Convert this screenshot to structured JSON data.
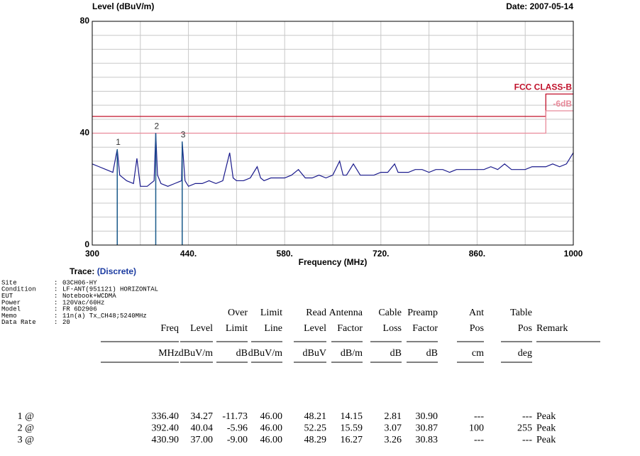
{
  "chart_data": {
    "type": "line",
    "title": "Level (dBuV/m)",
    "date": "Date: 2007-05-14",
    "xlabel": "Frequency (MHz)",
    "xlim": [
      300,
      1000
    ],
    "ylim": [
      0,
      80
    ],
    "xticks": [
      300,
      {
        "value": 440,
        "label": "440."
      },
      {
        "value": 580,
        "label": "580."
      },
      {
        "value": 720,
        "label": "720."
      },
      {
        "value": 860,
        "label": "860."
      },
      1000
    ],
    "xminorticks": [
      370,
      510,
      650,
      790,
      930
    ],
    "yticks": [
      0,
      40,
      80
    ],
    "yminorticks": [
      5,
      10,
      15,
      20,
      25,
      30,
      35,
      45,
      50,
      55,
      60,
      65,
      70,
      75
    ],
    "grid": true,
    "series": [
      {
        "name": "FCC CLASS-B",
        "color": "#c0102a",
        "x": [
          300,
          960,
          960,
          1000
        ],
        "values": [
          46,
          46,
          54,
          54
        ]
      },
      {
        "name": "-6dB",
        "color": "#e88a9a",
        "x": [
          300,
          960,
          960,
          1000
        ],
        "values": [
          40,
          40,
          48,
          48
        ]
      },
      {
        "name": "Trace",
        "color": "#1a1a8c",
        "x": [
          300,
          310,
          320,
          330,
          336.4,
          340,
          350,
          360,
          365,
          370,
          380,
          390,
          392.4,
          395,
          400,
          410,
          420,
          430,
          430.9,
          435,
          440,
          450,
          460,
          470,
          480,
          490,
          500,
          505,
          510,
          520,
          530,
          540,
          545,
          550,
          560,
          570,
          580,
          590,
          600,
          610,
          620,
          630,
          640,
          650,
          660,
          665,
          670,
          680,
          690,
          700,
          710,
          720,
          730,
          740,
          745,
          750,
          760,
          770,
          780,
          790,
          800,
          810,
          820,
          830,
          840,
          850,
          860,
          870,
          880,
          890,
          900,
          910,
          920,
          930,
          940,
          950,
          960,
          970,
          980,
          990,
          1000
        ],
        "values": [
          29,
          28,
          27,
          26,
          34.27,
          25,
          23,
          22,
          31,
          21,
          21,
          23,
          40.04,
          25,
          22,
          21,
          22,
          23,
          37.0,
          23,
          21,
          22,
          22,
          23,
          22,
          23,
          33,
          24,
          23,
          23,
          24,
          28,
          24,
          23,
          24,
          24,
          24,
          25,
          27,
          24,
          24,
          25,
          24,
          25,
          30,
          25,
          25,
          29,
          25,
          25,
          25,
          26,
          26,
          29,
          26,
          26,
          26,
          27,
          27,
          26,
          27,
          27,
          26,
          27,
          27,
          27,
          27,
          27,
          28,
          27,
          29,
          27,
          27,
          27,
          28,
          28,
          28,
          29,
          28,
          29,
          33
        ]
      }
    ],
    "markers": [
      {
        "label": "1",
        "x": 336.4,
        "y": 34.27
      },
      {
        "label": "2",
        "x": 392.4,
        "y": 40.04
      },
      {
        "label": "3",
        "x": 430.9,
        "y": 37.0
      }
    ]
  },
  "trace": {
    "label": "Trace:",
    "value": "(Discrete)"
  },
  "info": [
    {
      "label": "Site",
      "value": "03CH06-HY"
    },
    {
      "label": "Condition",
      "value": "LF-ANT(951121) HORIZONTAL"
    },
    {
      "label": "EUT",
      "value": "Notebook+WCDMA"
    },
    {
      "label": "Power",
      "value": "120Vac/60Hz"
    },
    {
      "label": "Model",
      "value": "FR 6D2906"
    },
    {
      "label": "Memo",
      "value": "11n(a) Tx_CH48;5240MHz"
    },
    {
      "label": "Data Rate",
      "value": "20"
    }
  ],
  "table": {
    "headers": [
      [
        ""
      ],
      [
        "Freq"
      ],
      [
        "Level"
      ],
      [
        "Over",
        "Limit"
      ],
      [
        "Limit",
        "Line"
      ],
      [
        "Read",
        "Level"
      ],
      [
        "Antenna",
        "Factor"
      ],
      [
        "Cable",
        "Loss"
      ],
      [
        "Preamp",
        "Factor"
      ],
      [
        "Ant",
        "Pos"
      ],
      [
        "Table",
        "Pos"
      ],
      [
        "Remark"
      ]
    ],
    "units": [
      "",
      "MHz",
      "dBuV/m",
      "dB",
      "dBuV/m",
      "dBuV",
      "dB/m",
      "dB",
      "dB",
      "cm",
      "deg",
      ""
    ],
    "rows": [
      [
        "1 @",
        "336.40",
        "34.27",
        "-11.73",
        "46.00",
        "48.21",
        "14.15",
        "2.81",
        "30.90",
        "---",
        "---",
        "Peak"
      ],
      [
        "2 @",
        "392.40",
        "40.04",
        "-5.96",
        "46.00",
        "52.25",
        "15.59",
        "3.07",
        "30.87",
        "100",
        "255",
        "Peak"
      ],
      [
        "3 @",
        "430.90",
        "37.00",
        "-9.00",
        "46.00",
        "48.29",
        "16.27",
        "3.26",
        "30.83",
        "---",
        "---",
        "Peak"
      ]
    ]
  }
}
